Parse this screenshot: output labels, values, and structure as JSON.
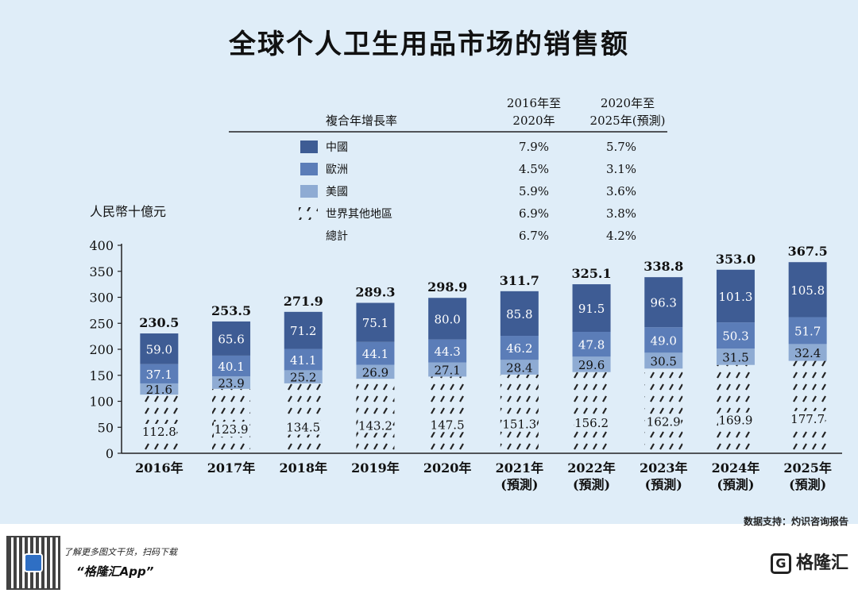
{
  "title": "全球个人卫生用品市场的销售额",
  "source": "数据支持：灼识咨询报告",
  "footer": {
    "line1": "了解更多图文干货，扫码下载",
    "line2": "“格隆汇App”",
    "brand": "格隆汇",
    "brand_mark": "G"
  },
  "colors": {
    "china": "#3e5c94",
    "europe": "#5b7db8",
    "usa": "#8eabd3",
    "rest_stroke": "#222222",
    "panel": "#dfedf8"
  },
  "cagr_table": {
    "header_label": "複合年增長率",
    "col1_header": [
      "2016年至",
      "2020年"
    ],
    "col2_header": [
      "2020年至",
      "2025年(預測)"
    ],
    "rows": [
      {
        "label": "中國",
        "swatch": "china",
        "c1": "7.9%",
        "c2": "5.7%"
      },
      {
        "label": "歐洲",
        "swatch": "europe",
        "c1": "4.5%",
        "c2": "3.1%"
      },
      {
        "label": "美國",
        "swatch": "usa",
        "c1": "5.9%",
        "c2": "3.6%"
      },
      {
        "label": "世界其他地區",
        "swatch": "rest",
        "c1": "6.9%",
        "c2": "3.8%"
      },
      {
        "label": "總計",
        "swatch": "none",
        "c1": "6.7%",
        "c2": "4.2%"
      }
    ]
  },
  "chart_data": {
    "type": "bar",
    "stacked": true,
    "ylabel": "人民幣十億元",
    "ylim": [
      0,
      400
    ],
    "yticks": [
      0,
      50,
      100,
      150,
      200,
      250,
      300,
      350,
      400
    ],
    "categories": [
      [
        "2016年"
      ],
      [
        "2017年"
      ],
      [
        "2018年"
      ],
      [
        "2019年"
      ],
      [
        "2020年"
      ],
      [
        "2021年",
        "(預測)"
      ],
      [
        "2022年",
        "(預測)"
      ],
      [
        "2023年",
        "(預測)"
      ],
      [
        "2024年",
        "(預測)"
      ],
      [
        "2025年",
        "(預測)"
      ]
    ],
    "series": [
      {
        "name": "世界其他地區",
        "key": "rest",
        "values": [
          112.8,
          123.9,
          134.5,
          143.2,
          147.5,
          151.3,
          156.2,
          162.9,
          169.9,
          177.7
        ]
      },
      {
        "name": "美國",
        "key": "usa",
        "values": [
          21.6,
          23.9,
          25.2,
          26.9,
          27.1,
          28.4,
          29.6,
          30.5,
          31.5,
          32.4
        ]
      },
      {
        "name": "歐洲",
        "key": "europe",
        "values": [
          37.1,
          40.1,
          41.1,
          44.1,
          44.3,
          46.2,
          47.8,
          49.0,
          50.3,
          51.7
        ]
      },
      {
        "name": "中國",
        "key": "china",
        "values": [
          59.0,
          65.6,
          71.2,
          75.1,
          80.0,
          85.8,
          91.5,
          96.3,
          101.3,
          105.8
        ]
      }
    ],
    "value_labels": {
      "rest": [
        "112.8",
        "123.9",
        "134.5",
        "143.2",
        "147.5",
        "151.3",
        "156.2",
        "162.9",
        "169.9",
        "177.7"
      ],
      "usa": [
        "21.6",
        "23.9",
        "25.2",
        "26.9",
        "27.1",
        "28.4",
        "29.6",
        "30.5",
        "31.5",
        "32.4"
      ],
      "europe": [
        "37.1",
        "40.1",
        "41.1",
        "44.1",
        "44.3",
        "46.2",
        "47.8",
        "49.0",
        "50.3",
        "51.7"
      ],
      "china": [
        "59.0",
        "65.6",
        "71.2",
        "75.1",
        "80.0",
        "85.8",
        "91.5",
        "96.3",
        "101.3",
        "105.8"
      ]
    },
    "totals": [
      "230.5",
      "253.5",
      "271.9",
      "289.3",
      "298.9",
      "311.7",
      "325.1",
      "338.8",
      "353.0",
      "367.5"
    ]
  }
}
